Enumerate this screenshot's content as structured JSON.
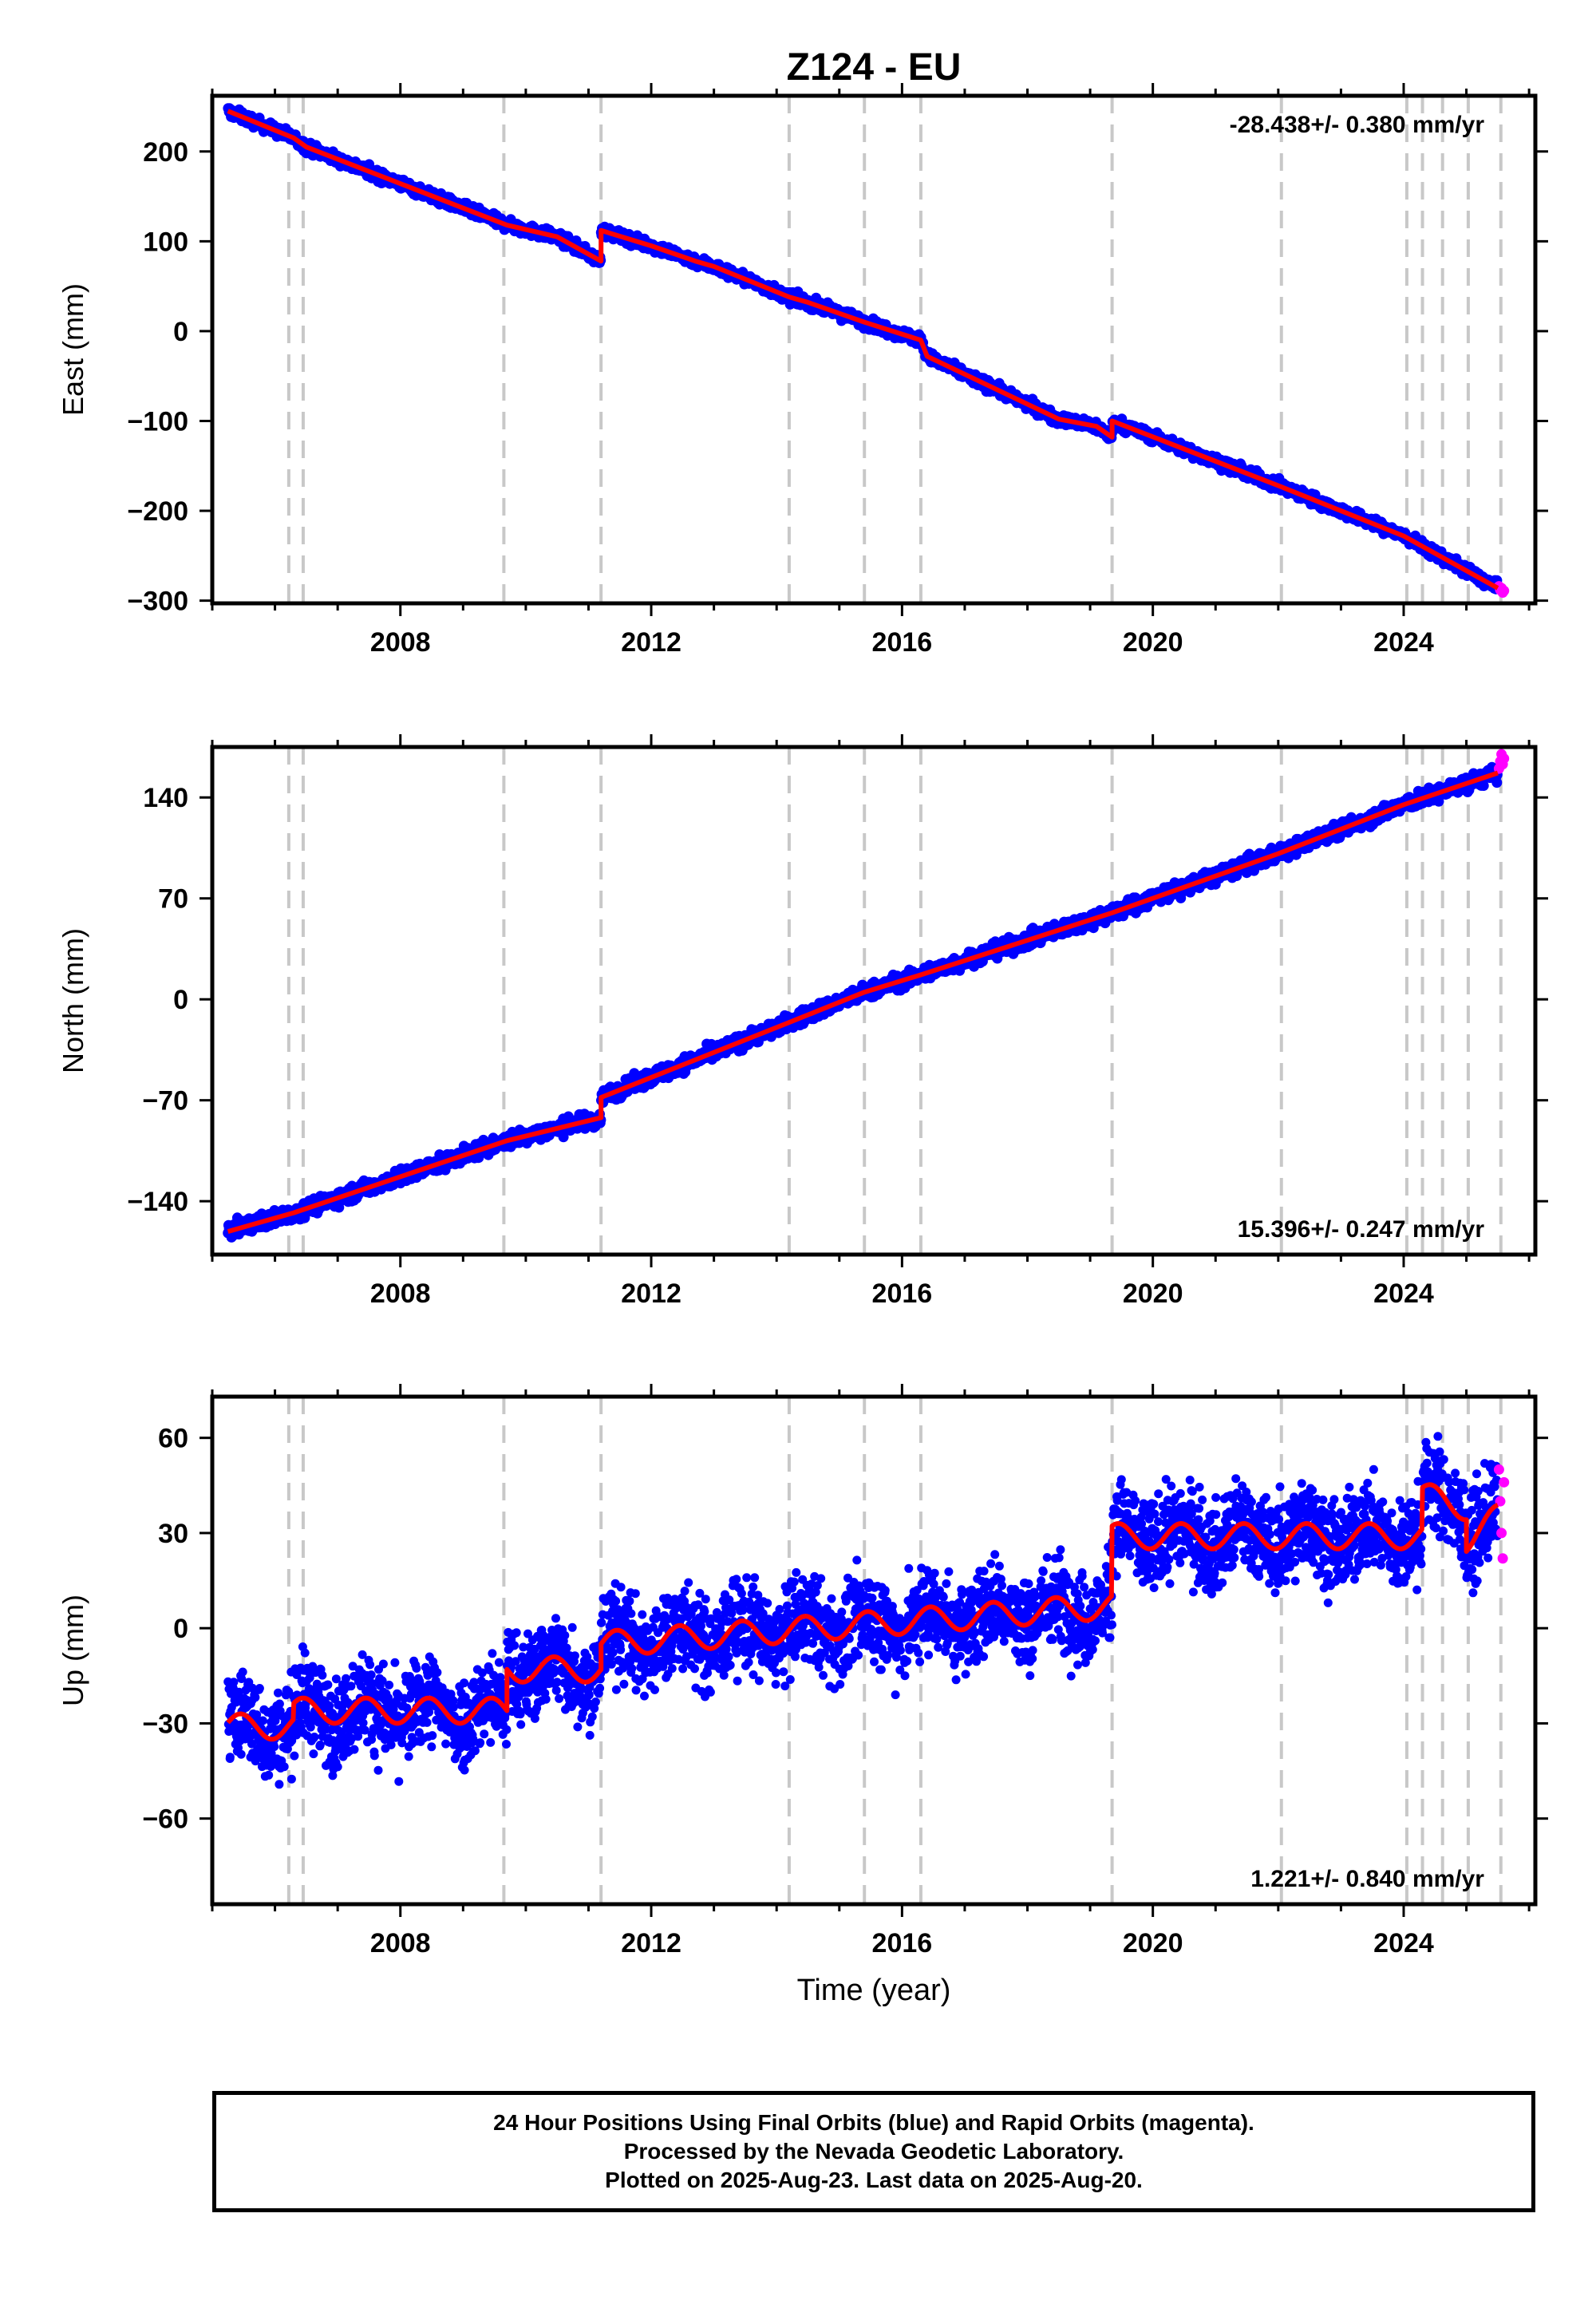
{
  "title": "Z124 - EU",
  "chart_data": [
    {
      "type": "scatter",
      "name": "east",
      "ylabel": "East (mm)",
      "ylim": [
        -303,
        262
      ],
      "yticks": [
        200,
        100,
        0,
        -100,
        -200,
        -300
      ],
      "ytick_labels": [
        "200",
        "100",
        "0",
        "−100",
        "−200",
        "−300"
      ],
      "rate_label": "-28.438+/- 0.380 mm/yr",
      "rate_position": "top-right",
      "model_points": [
        [
          2005.25,
          245
        ],
        [
          2006.3,
          215
        ],
        [
          2006.5,
          205
        ],
        [
          2009.7,
          118
        ],
        [
          2010.5,
          105
        ],
        [
          2011.2,
          78
        ],
        [
          2011.2,
          112
        ],
        [
          2012.0,
          95
        ],
        [
          2012.7,
          78
        ],
        [
          2013.0,
          72
        ],
        [
          2014.2,
          38
        ],
        [
          2014.5,
          32
        ],
        [
          2015.4,
          10
        ],
        [
          2016.3,
          -10
        ],
        [
          2016.4,
          -28
        ],
        [
          2018.5,
          -98
        ],
        [
          2019.1,
          -106
        ],
        [
          2019.35,
          -118
        ],
        [
          2019.35,
          -100
        ],
        [
          2022.0,
          -172
        ],
        [
          2024.0,
          -228
        ],
        [
          2025.5,
          -286
        ]
      ],
      "magenta_points": [
        [
          2025.52,
          -284
        ],
        [
          2025.54,
          -288
        ],
        [
          2025.56,
          -286
        ],
        [
          2025.58,
          -291
        ],
        [
          2025.6,
          -289
        ]
      ]
    },
    {
      "type": "scatter",
      "name": "north",
      "ylabel": "North (mm)",
      "ylim": [
        -177,
        175
      ],
      "yticks": [
        140,
        70,
        0,
        -70,
        -140
      ],
      "ytick_labels": [
        "140",
        "70",
        "0",
        "−70",
        "−140"
      ],
      "rate_label": "15.396+/- 0.247 mm/yr",
      "rate_position": "bottom-right",
      "model_points": [
        [
          2005.25,
          -161
        ],
        [
          2006.3,
          -148
        ],
        [
          2009.7,
          -98
        ],
        [
          2011.2,
          -82
        ],
        [
          2011.2,
          -68
        ],
        [
          2014.2,
          -16
        ],
        [
          2015.4,
          5
        ],
        [
          2016.3,
          17
        ],
        [
          2019.35,
          60
        ],
        [
          2022.0,
          101
        ],
        [
          2024.0,
          135
        ],
        [
          2025.5,
          157
        ]
      ],
      "magenta_points": [
        [
          2025.52,
          160
        ],
        [
          2025.54,
          165
        ],
        [
          2025.56,
          170
        ],
        [
          2025.58,
          163
        ],
        [
          2025.6,
          167
        ]
      ]
    },
    {
      "type": "scatter",
      "name": "up",
      "xlabel": "Time (year)",
      "ylabel": "Up (mm)",
      "ylim": [
        -87,
        73
      ],
      "yticks": [
        60,
        30,
        0,
        -30,
        -60
      ],
      "ytick_labels": [
        "60",
        "30",
        "0",
        "−30",
        "−60"
      ],
      "rate_label": "1.221+/- 0.840 mm/yr",
      "rate_position": "bottom-right",
      "model_points": [
        [
          2005.25,
          -31
        ],
        [
          2006.3,
          -31
        ],
        [
          2006.3,
          -26
        ],
        [
          2009.7,
          -26
        ],
        [
          2009.7,
          -13
        ],
        [
          2011.2,
          -13
        ],
        [
          2011.2,
          -5
        ],
        [
          2019.35,
          7
        ],
        [
          2019.35,
          29
        ],
        [
          2024.3,
          29
        ],
        [
          2024.3,
          42
        ],
        [
          2025.0,
          38
        ],
        [
          2025.0,
          28
        ],
        [
          2025.5,
          35
        ]
      ],
      "magenta_points": [
        [
          2025.52,
          50
        ],
        [
          2025.54,
          40
        ],
        [
          2025.56,
          30
        ],
        [
          2025.58,
          22
        ],
        [
          2025.6,
          46
        ]
      ]
    }
  ],
  "x_axis": {
    "xlim": [
      2005.0,
      2026.1
    ],
    "ticks": [
      2008,
      2012,
      2016,
      2020,
      2024
    ],
    "tick_labels": [
      "2008",
      "2012",
      "2016",
      "2020",
      "2024"
    ]
  },
  "event_lines": [
    2006.22,
    2006.45,
    2009.65,
    2011.2,
    2014.2,
    2015.4,
    2016.3,
    2019.35,
    2022.05,
    2024.05,
    2024.3,
    2024.62,
    2025.03,
    2025.55
  ],
  "colors": {
    "final_orbits": "#0000ff",
    "rapid_orbits": "#ff00ff",
    "model": "#ff0000",
    "event_lines": "#c8c8c8"
  },
  "footer": {
    "line1": "24 Hour Positions Using Final Orbits (blue) and Rapid Orbits (magenta).",
    "line2": "Processed by the Nevada Geodetic Laboratory.",
    "line3": "Plotted on 2025-Aug-23. Last data on 2025-Aug-20."
  }
}
